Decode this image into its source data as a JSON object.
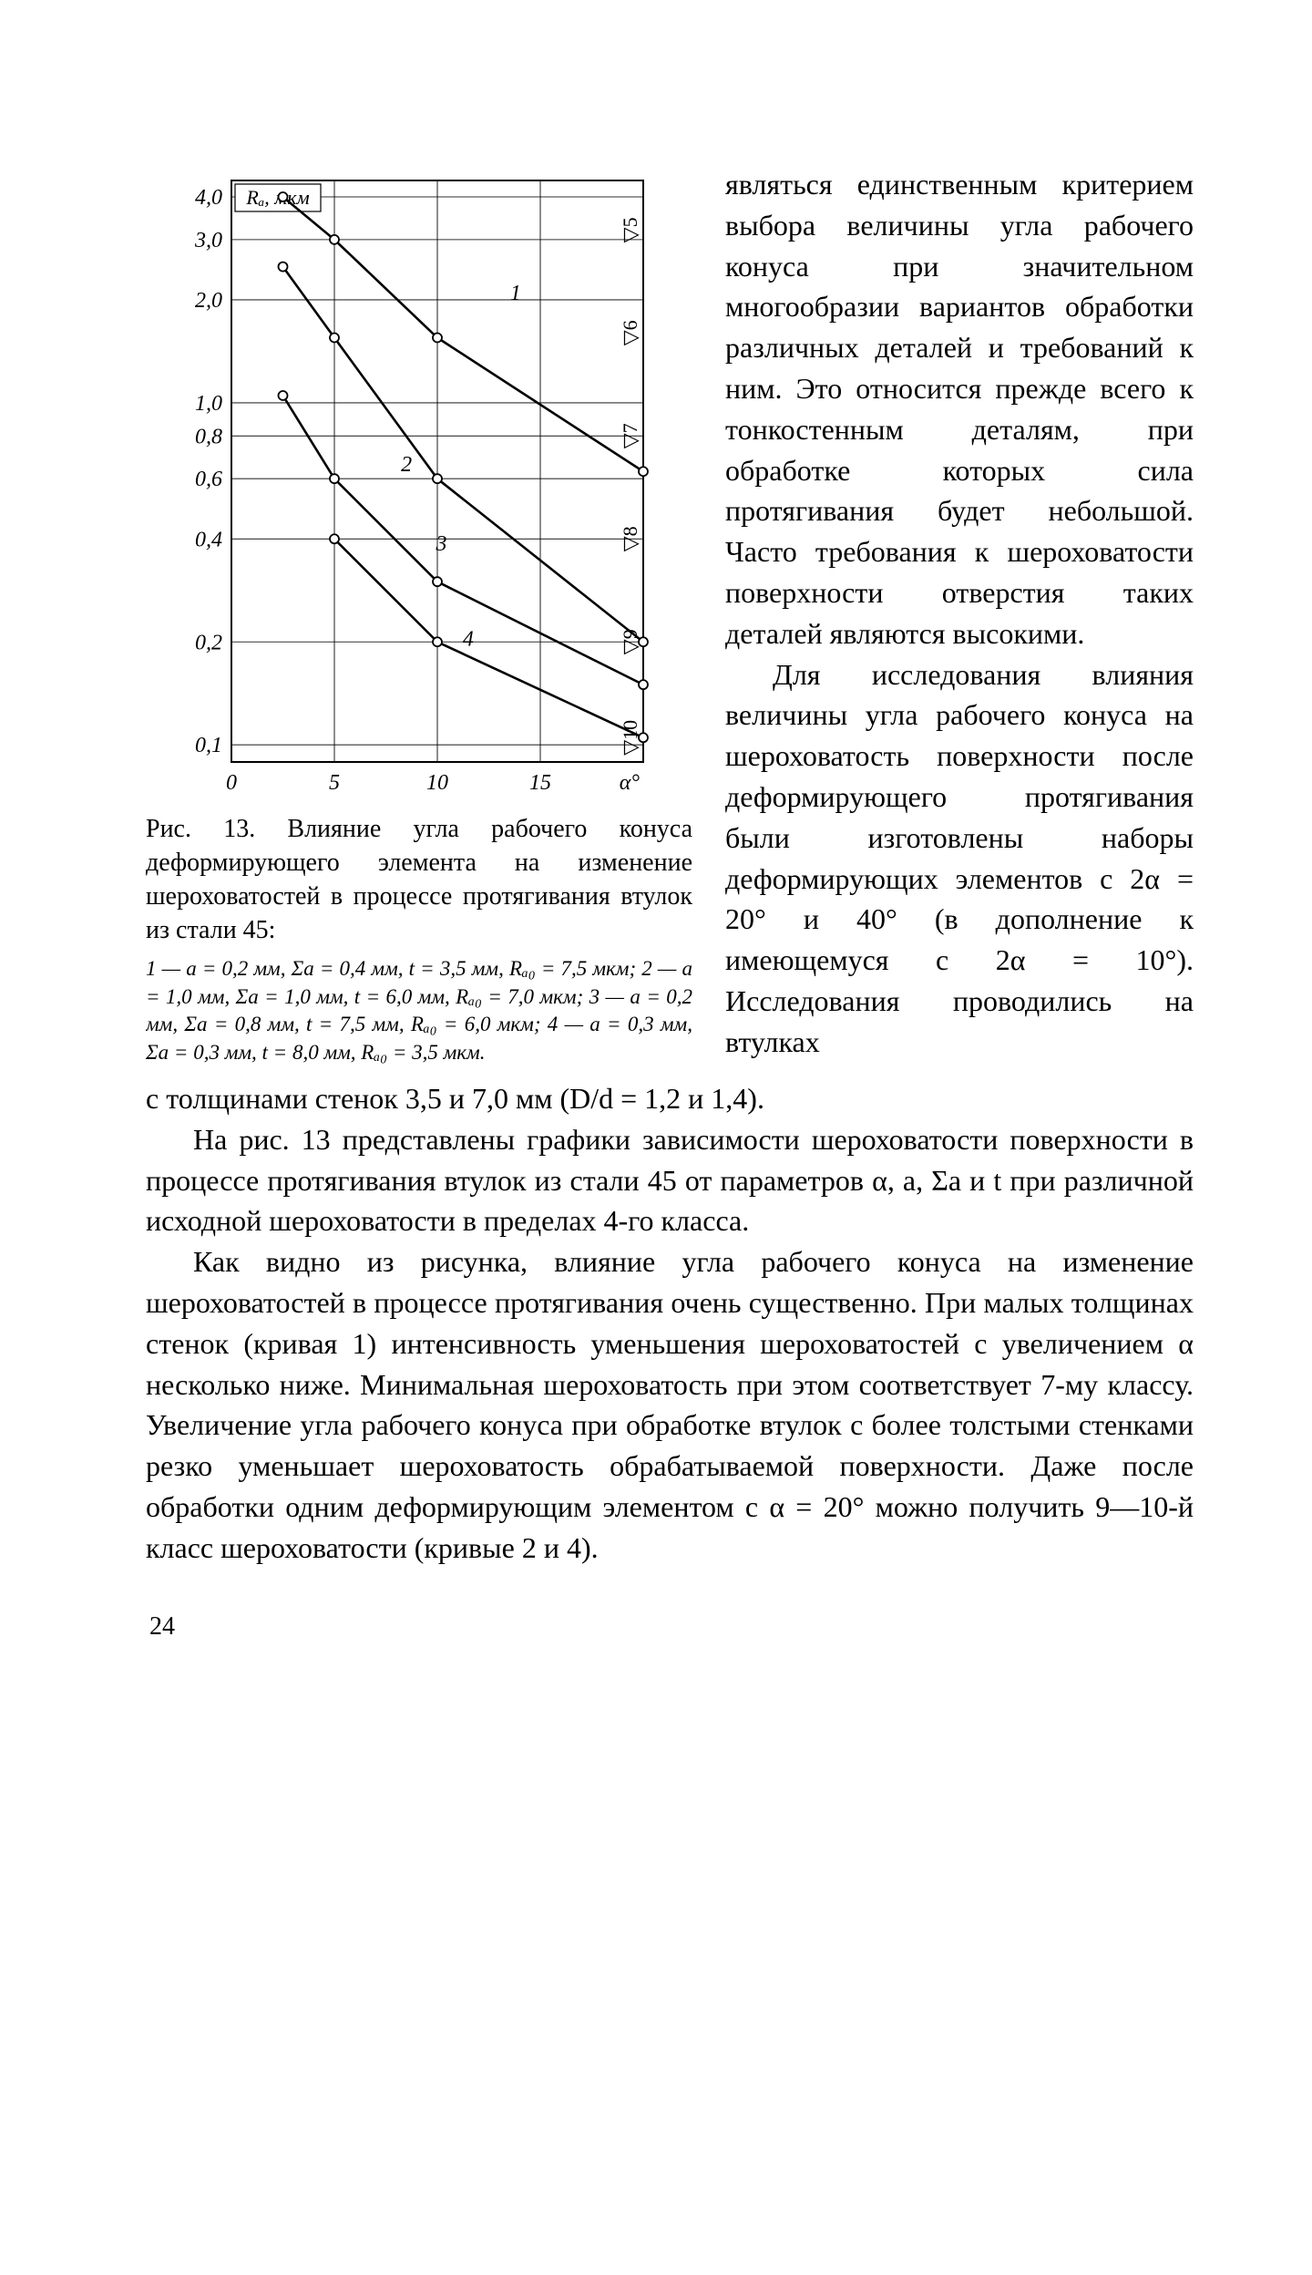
{
  "chart": {
    "type": "line",
    "ylabel": "Rₐ, мкм",
    "xlabel": "α°",
    "title_fontsize": 24,
    "background_color": "#ffffff",
    "axis_stroke": "#000000",
    "grid_color": "#000000",
    "line_stroke": "#000000",
    "marker_fill": "#ffffff",
    "line_width": 2.6,
    "marker_radius": 5,
    "xlim": [
      0,
      20
    ],
    "ylim_log10": [
      -1.05,
      0.65
    ],
    "yticks": [
      0.1,
      0.2,
      0.4,
      0.6,
      0.8,
      1.0,
      2.0,
      3.0,
      4.0
    ],
    "ytick_labels": [
      "0,1",
      "0,2",
      "0,4",
      "0,6",
      "0,8",
      "1,0",
      "2,0",
      "3,0",
      "4,0"
    ],
    "xticks": [
      0,
      5,
      10,
      15,
      20
    ],
    "xtick_labels": [
      "0",
      "5",
      "10",
      "15",
      ""
    ],
    "series": [
      {
        "name": "1",
        "points": [
          [
            2.5,
            4.0
          ],
          [
            5.0,
            3.0
          ],
          [
            10.0,
            1.55
          ],
          [
            20.0,
            0.63
          ]
        ]
      },
      {
        "name": "2",
        "points": [
          [
            2.5,
            2.5
          ],
          [
            5.0,
            1.55
          ],
          [
            10.0,
            0.6
          ],
          [
            20.0,
            0.2
          ]
        ]
      },
      {
        "name": "3",
        "points": [
          [
            2.5,
            1.05
          ],
          [
            5.0,
            0.6
          ],
          [
            10.0,
            0.3
          ],
          [
            20.0,
            0.15
          ]
        ]
      },
      {
        "name": "4",
        "points": [
          [
            5.0,
            0.4
          ],
          [
            10.0,
            0.2
          ],
          [
            20.0,
            0.105
          ]
        ]
      }
    ],
    "right_markers": [
      {
        "label": "▽5",
        "y": 3.2
      },
      {
        "label": "▽6",
        "y": 1.6
      },
      {
        "label": "▽7",
        "y": 0.8
      },
      {
        "label": "▽8",
        "y": 0.4
      },
      {
        "label": "▽9",
        "y": 0.2
      },
      {
        "label": "▽10",
        "y": 0.105
      }
    ],
    "curve_labels": [
      {
        "text": "1",
        "x": 13.8,
        "y": 2.0
      },
      {
        "text": "2",
        "x": 8.5,
        "y": 0.63
      },
      {
        "text": "3",
        "x": 10.2,
        "y": 0.37
      },
      {
        "text": "4",
        "x": 11.5,
        "y": 0.195
      }
    ]
  },
  "caption": "Рис. 13. Влияние угла рабочего конуса деформирующего элемента на изменение шероховатостей в процессе протягивания втулок из стали 45:",
  "legend_text": "1 — a = 0,2 мм, Σa = 0,4 мм, t = 3,5 мм, Rₐ₀ = 7,5 мкм;   2 — a = 1,0 мм,  Σa = 1,0 мм,   t = 6,0 мм,  Rₐ₀ = 7,0 мкм;  3 — a = 0,2 мм,  Σa = 0,8 мм,  t = 7,5 мм,  Rₐ₀ = 6,0 мкм;   4 — a = 0,3 мм,  Σa = 0,3 мм, t = 8,0 мм, Rₐ₀ = 3,5 мкм.",
  "right_column_para1": "являться единственным критерием выбора величины угла рабочего конуса при значительном многообразии вариантов обработки различных деталей и требований к ним. Это относится прежде всего к тонкостенным деталям, при обработке которых сила протягивания будет небольшой. Часто требования к шероховатости поверхности отверстия таких деталей являются высокими.",
  "right_column_para2": "Для исследования влияния величины угла рабочего конуса на шероховатость поверхности после деформирующего протягивания были изготовлены наборы деформирующих элементов с 2α = 20° и 40° (в дополнение к имеющемуся с 2α = 10°). Исследования проводились на втулках",
  "para_after_wrap": "с толщинами стенок 3,5 и 7,0 мм (D/d = 1,2 и 1,4).",
  "para3": "На рис. 13 представлены графики зависимости шероховатости поверхности в процессе протягивания втулок из стали 45 от параметров α, a, Σa и t при различной исходной шероховатости в пределах 4-го класса.",
  "para4": "Как видно из рисунка, влияние угла рабочего конуса на изменение шероховатостей в процессе протягивания очень существенно. При малых толщинах стенок (кривая 1) интенсивность уменьшения шероховатостей с увеличением α несколько ниже. Минимальная шероховатость при этом соответствует 7-му классу. Увеличение угла рабочего конуса при обработке втулок с более толстыми стенками резко уменьшает шероховатость обрабатываемой поверхности. Даже после обработки одним деформирующим элементом с α = 20° можно получить 9—10-й класс шероховатости (кривые 2 и 4).",
  "page_number": "24"
}
